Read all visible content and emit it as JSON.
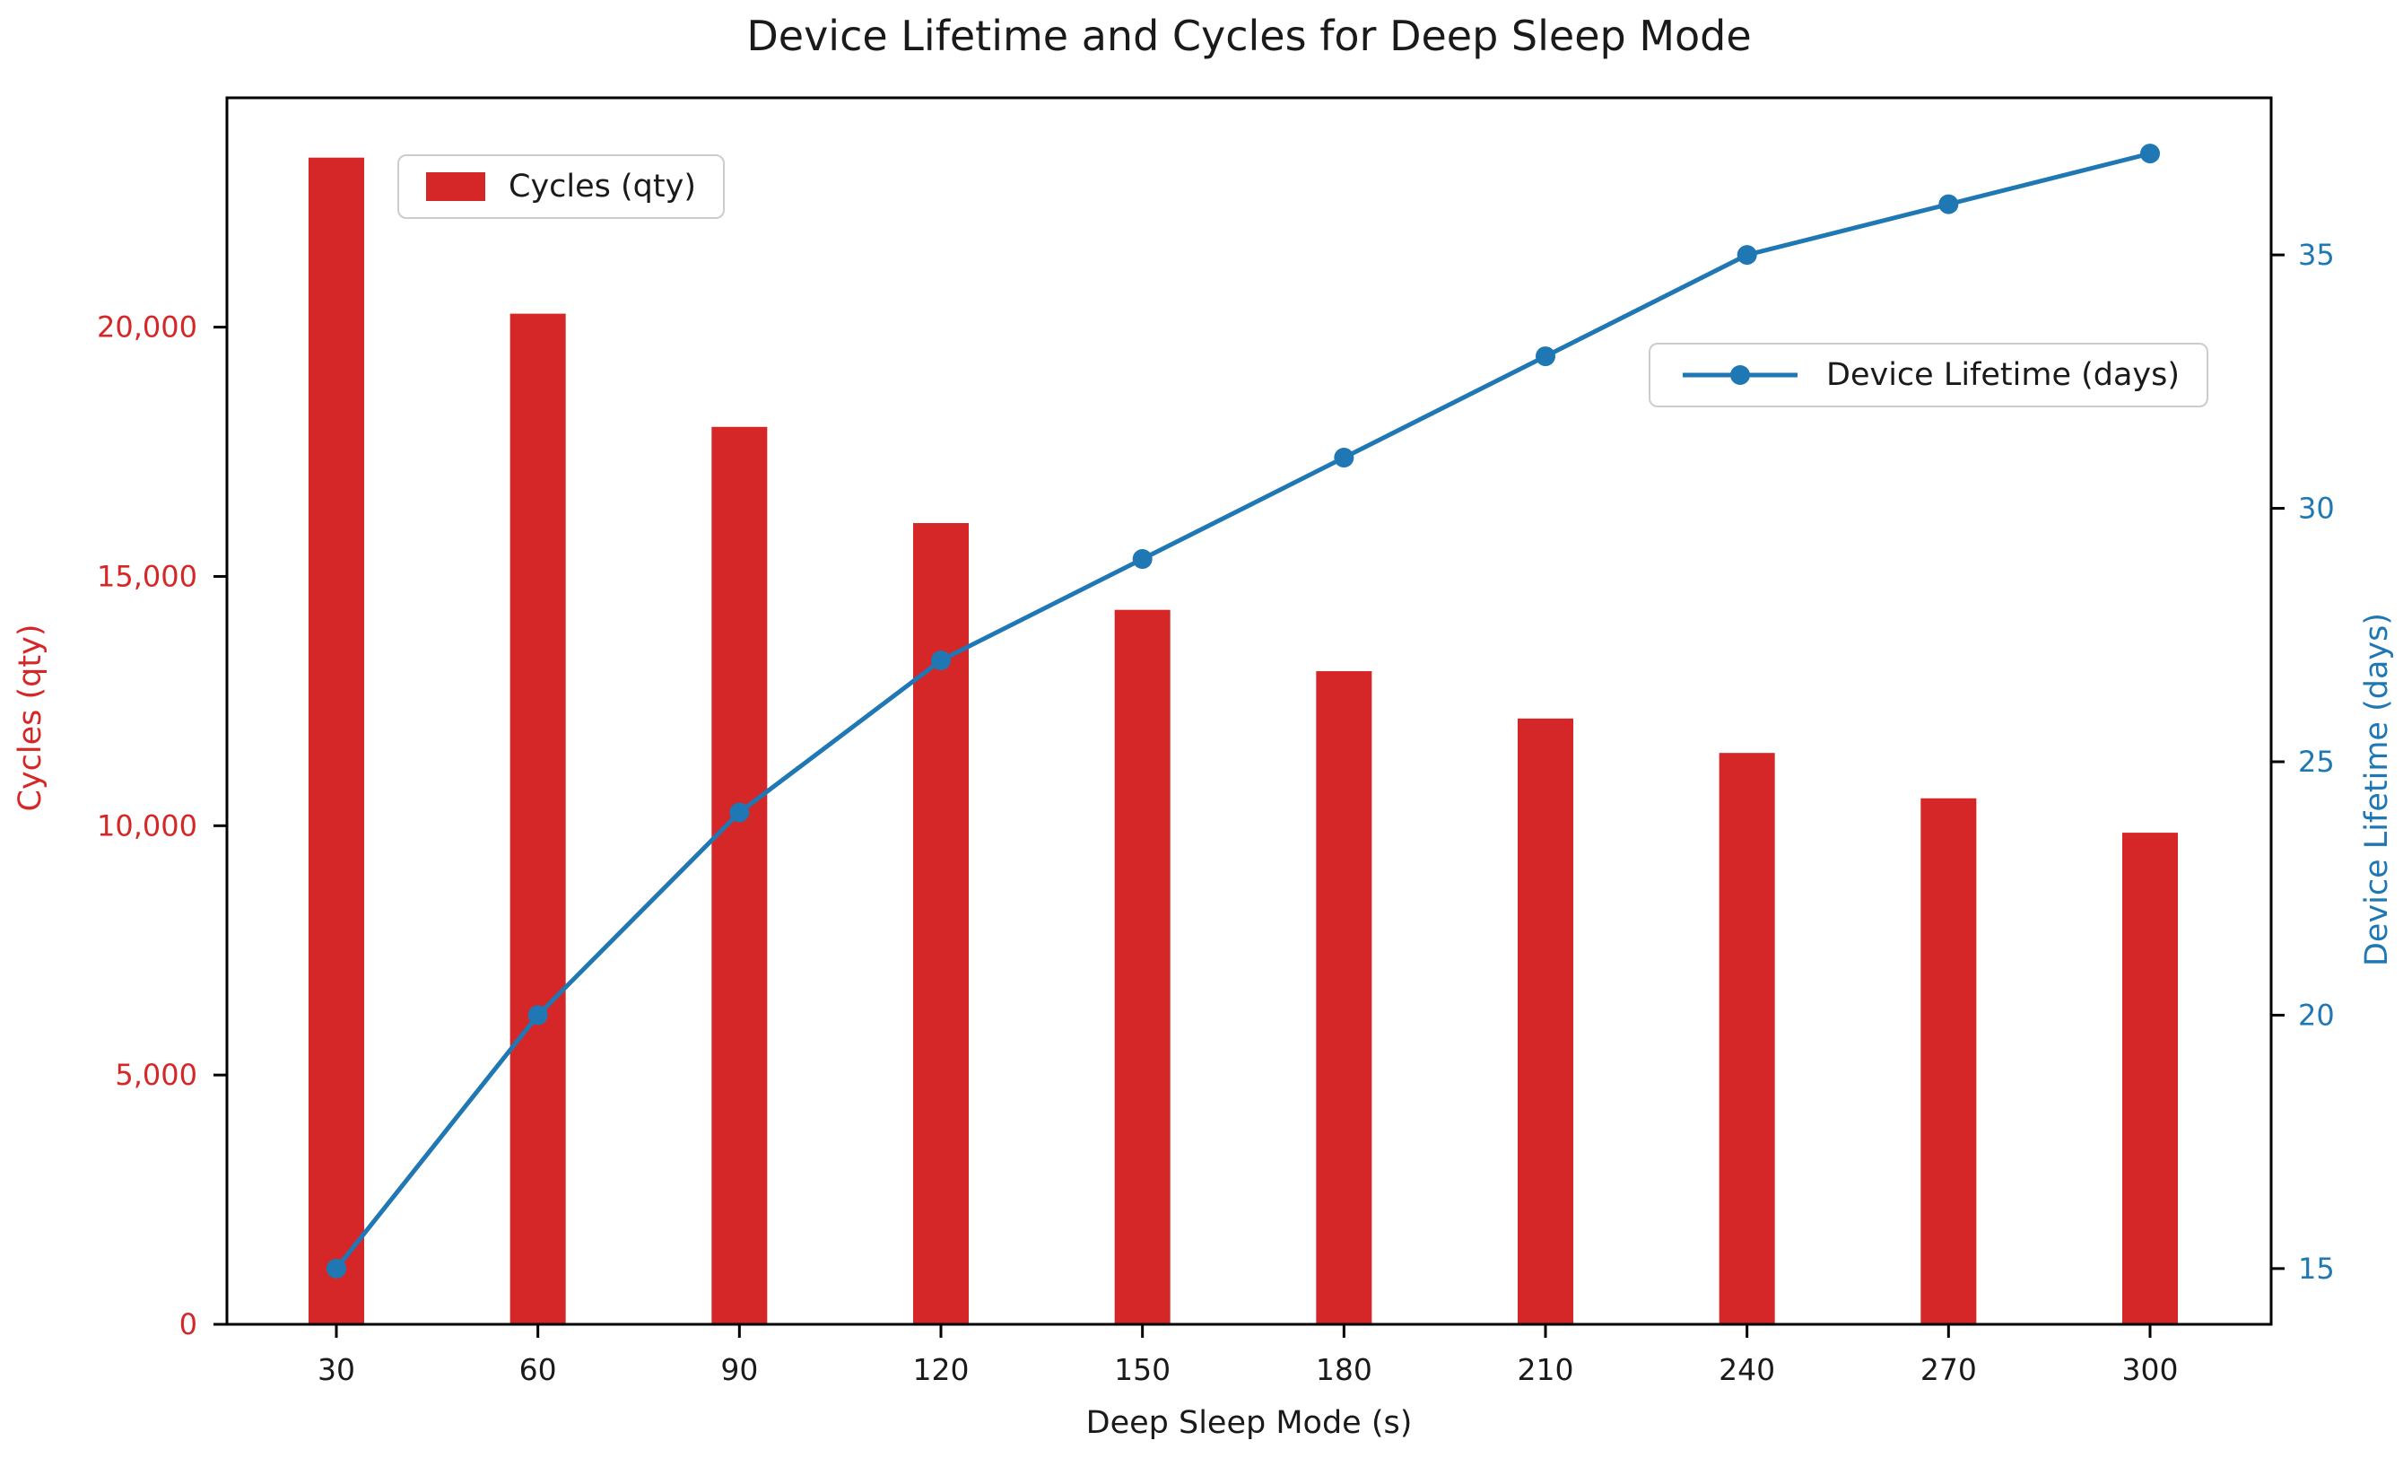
{
  "title": "Device Lifetime and Cycles for Deep Sleep Mode",
  "colors": {
    "bar_red": "#d62728",
    "line_blue": "#1f77b4",
    "text_black": "#1a1a1a",
    "spine_black": "#000000",
    "legend_border": "#cccccc",
    "background": "#ffffff"
  },
  "chart_data": {
    "type": "bar+line (dual y-axis)",
    "title": "Device Lifetime and Cycles for Deep Sleep Mode",
    "xlabel": "Deep Sleep Mode (s)",
    "ylabel_left": "Cycles (qty)",
    "ylabel_right": "Device Lifetime (days)",
    "categories": [
      30,
      60,
      90,
      120,
      150,
      180,
      210,
      240,
      270,
      300
    ],
    "series": [
      {
        "name": "Cycles (qty)",
        "kind": "bar",
        "axis": "left",
        "color": "#d62728",
        "values": [
          23400,
          20270,
          18000,
          16070,
          14330,
          13100,
          12150,
          11460,
          10550,
          9860
        ]
      },
      {
        "name": "Device Lifetime (days)",
        "kind": "line",
        "axis": "right",
        "color": "#1f77b4",
        "marker": "circle",
        "values": [
          15,
          20,
          24,
          27,
          29,
          31,
          33,
          35,
          36,
          37
        ]
      }
    ],
    "ylim_left": [
      0,
      24600
    ],
    "ylim_right": [
      13.9,
      38.1
    ],
    "yticks_left": {
      "values": [
        0,
        5000,
        10000,
        15000,
        20000
      ],
      "labels": [
        "0",
        "5,000",
        "10,000",
        "15,000",
        "20,000"
      ]
    },
    "yticks_right": {
      "values": [
        15,
        20,
        25,
        30,
        35
      ],
      "labels": [
        "15",
        "20",
        "25",
        "30",
        "35"
      ]
    },
    "xtick_labels": [
      "30",
      "60",
      "90",
      "120",
      "150",
      "180",
      "210",
      "240",
      "270",
      "300"
    ],
    "grid": false,
    "legend_bars_position": "upper left",
    "legend_line_position": "center right"
  }
}
